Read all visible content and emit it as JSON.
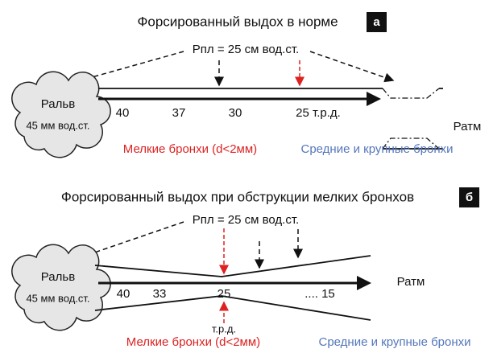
{
  "panels": [
    {
      "title": "Форсированный выдох в норме",
      "badge": "а",
      "ppl": "Рпл = 25 см вод.ст.",
      "alveolus": {
        "label": "Ральв",
        "pressure": "45 мм вод.ст."
      },
      "pressures": [
        "40",
        "37",
        "30",
        "25 т.р.д."
      ],
      "patm": "Ратм",
      "small_bronchi": "Мелкие бронхи (d<2мм)",
      "large_bronchi": "Средние и крупные бронхи"
    },
    {
      "title": "Форсированный выдох при обструкции мелких бронхов",
      "badge": "б",
      "ppl": "Рпл = 25 см вод.ст.",
      "alveolus": {
        "label": "Ральв",
        "pressure": "45 мм вод.ст."
      },
      "pressures": [
        "40",
        "33",
        "25",
        ".... 15"
      ],
      "epp": "т.р.д.",
      "patm": "Ратм",
      "small_bronchi": "Мелкие бронхи (d<2мм)",
      "large_bronchi": "Средние и крупные бронхи"
    }
  ]
}
